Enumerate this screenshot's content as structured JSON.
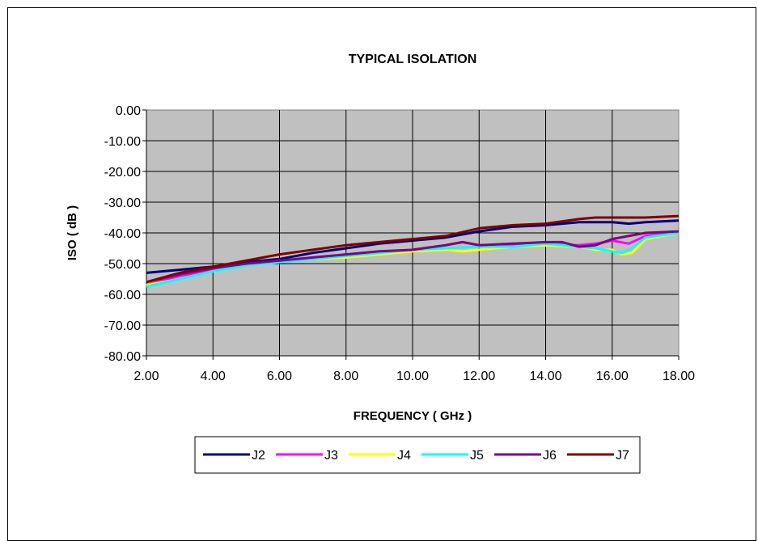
{
  "chart_data": {
    "type": "line",
    "title": "TYPICAL ISOLATION",
    "xlabel": "FREQUENCY ( GHz )",
    "ylabel": "ISO ( dB )",
    "xlim": [
      2,
      18
    ],
    "ylim": [
      -80,
      0
    ],
    "x_ticks": [
      "2.00",
      "4.00",
      "6.00",
      "8.00",
      "10.00",
      "12.00",
      "14.00",
      "16.00",
      "18.00"
    ],
    "y_ticks": [
      "0.00",
      "-10.00",
      "-20.00",
      "-30.00",
      "-40.00",
      "-50.00",
      "-60.00",
      "-70.00",
      "-80.00"
    ],
    "grid": true,
    "plot_background": "#c0c0c0",
    "legend_position": "bottom",
    "series": [
      {
        "name": "J2",
        "color": "#000080",
        "x": [
          2,
          3,
          4,
          5,
          6,
          7,
          8,
          9,
          10,
          11,
          12,
          13,
          14,
          15,
          16,
          16.5,
          17,
          18
        ],
        "y": [
          -53,
          -52,
          -51,
          -49.5,
          -48.5,
          -46.5,
          -45,
          -43.5,
          -42.5,
          -41.5,
          -39.5,
          -38,
          -37.5,
          -36.5,
          -36.5,
          -37,
          -36.5,
          -36
        ]
      },
      {
        "name": "J3",
        "color": "#ff00ff",
        "x": [
          2,
          3,
          4,
          5,
          6,
          7,
          8,
          9,
          10,
          11,
          11.5,
          12,
          13,
          14,
          15,
          15.5,
          16,
          16.5,
          17,
          18
        ],
        "y": [
          -57,
          -54,
          -52,
          -50.5,
          -49,
          -48.5,
          -47.5,
          -46.5,
          -45.5,
          -44,
          -43,
          -44,
          -44,
          -43.5,
          -44,
          -43.5,
          -42.5,
          -43.5,
          -41,
          -40
        ]
      },
      {
        "name": "J4",
        "color": "#ffff00",
        "x": [
          2,
          3,
          4,
          5,
          6,
          7,
          8,
          9,
          10,
          11,
          11.5,
          12,
          13,
          14,
          15,
          15.5,
          16,
          16.3,
          16.6,
          17,
          18
        ],
        "y": [
          -57,
          -55,
          -52.5,
          -50.5,
          -49,
          -48.5,
          -48,
          -47,
          -46,
          -45.5,
          -46,
          -45.5,
          -44.5,
          -44,
          -44.5,
          -45.5,
          -45.5,
          -47,
          -46.5,
          -42,
          -40
        ]
      },
      {
        "name": "J5",
        "color": "#00ffff",
        "x": [
          2,
          3,
          4,
          5,
          6,
          7,
          8,
          9,
          10,
          11,
          12,
          13,
          14,
          15,
          15.5,
          16,
          16.3,
          16.6,
          17,
          18
        ],
        "y": [
          -57.5,
          -55,
          -52.5,
          -50.5,
          -49.5,
          -48.5,
          -47.5,
          -46.5,
          -45.5,
          -45,
          -44.5,
          -44.5,
          -43.5,
          -44.5,
          -45,
          -46,
          -46.5,
          -45,
          -41.5,
          -40
        ]
      },
      {
        "name": "J6",
        "color": "#800080",
        "x": [
          2,
          3,
          4,
          5,
          6,
          7,
          8,
          9,
          10,
          11,
          11.5,
          12,
          13,
          14,
          14.5,
          15,
          15.5,
          16,
          17,
          18
        ],
        "y": [
          -56,
          -53.5,
          -51.5,
          -50,
          -49,
          -48,
          -47,
          -46,
          -45.5,
          -44,
          -43,
          -44,
          -43.5,
          -43,
          -43,
          -44.5,
          -44,
          -42,
          -40,
          -39.5
        ]
      },
      {
        "name": "J7",
        "color": "#800000",
        "x": [
          2,
          3,
          4,
          5,
          6,
          7,
          8,
          8.5,
          9,
          10,
          11,
          12,
          13,
          14,
          15,
          15.5,
          16,
          17,
          18
        ],
        "y": [
          -56,
          -53,
          -51,
          -49,
          -47,
          -45.5,
          -44,
          -43.5,
          -43,
          -42,
          -41,
          -38.5,
          -37.5,
          -37,
          -35.5,
          -35,
          -35,
          -35,
          -34.5
        ]
      }
    ]
  }
}
